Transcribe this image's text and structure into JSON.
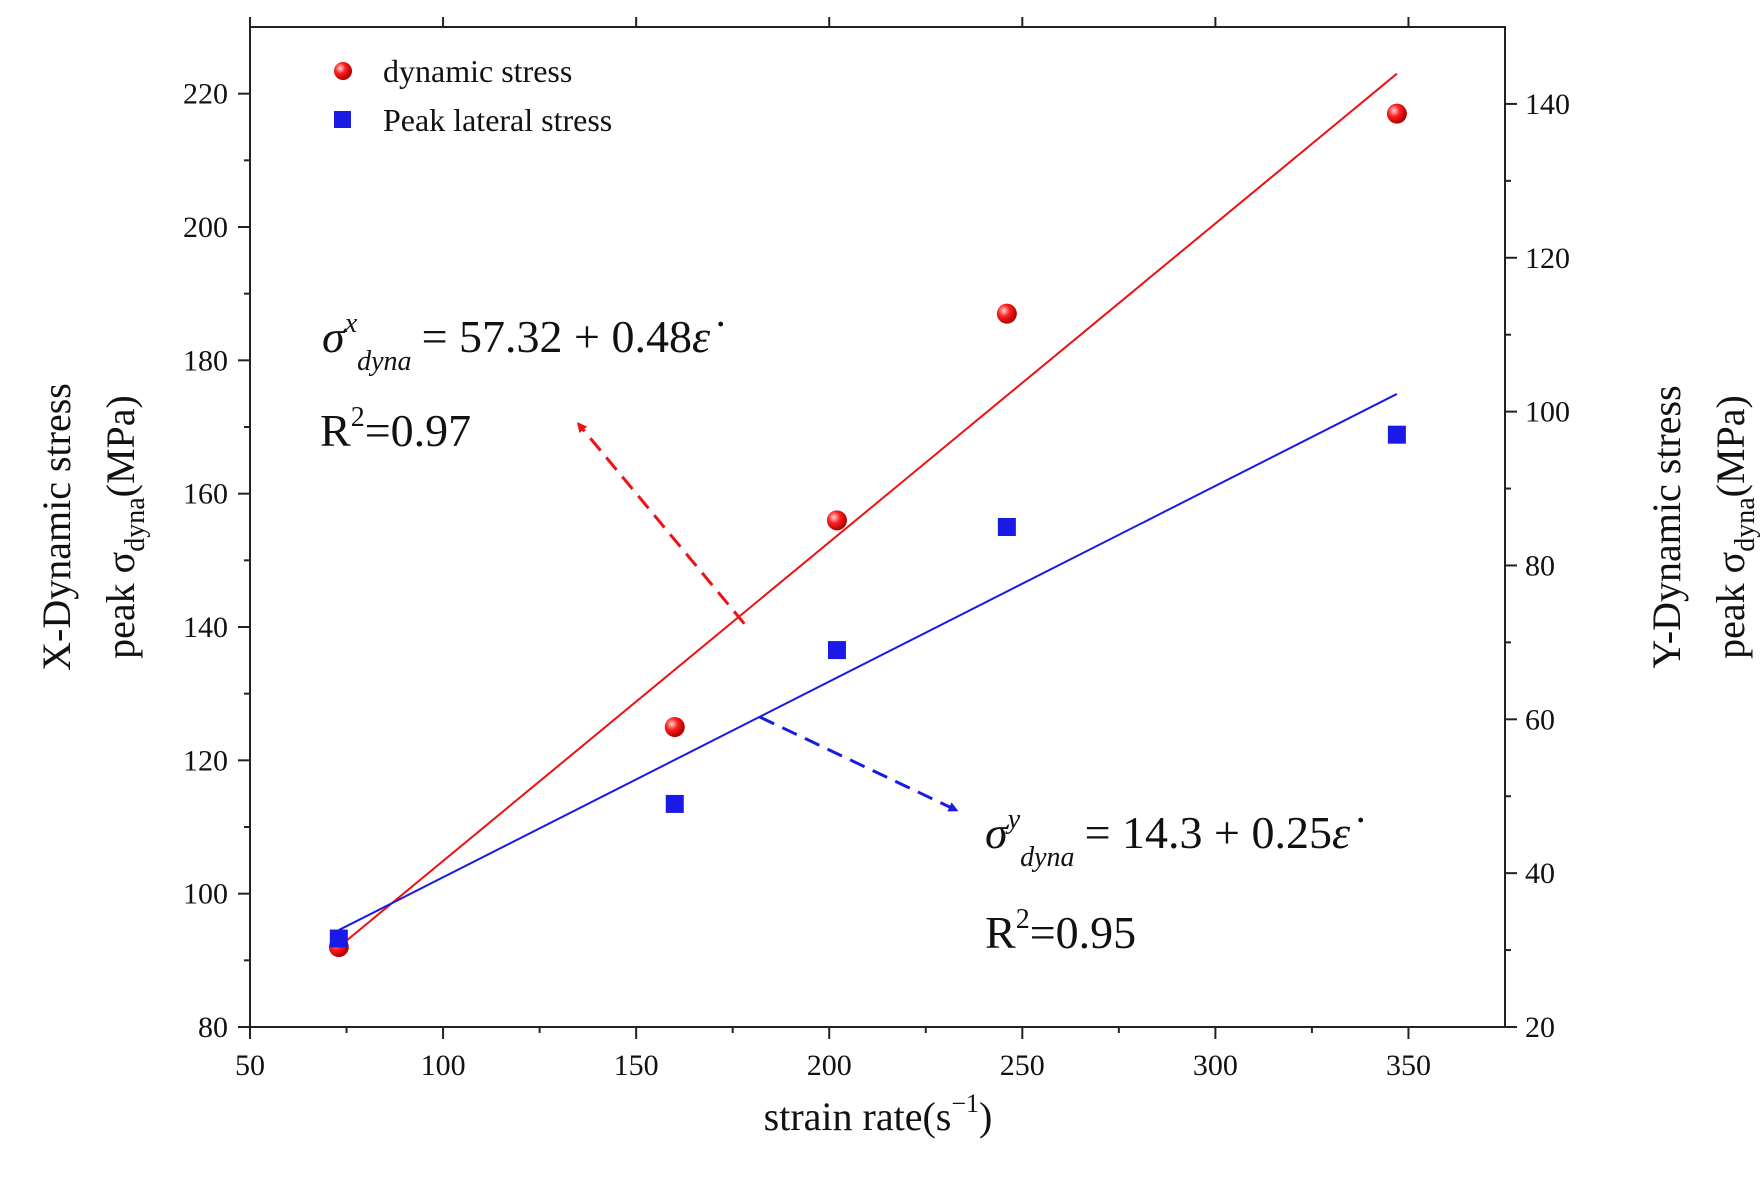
{
  "chart_data": {
    "type": "scatter",
    "xlabel_main": "strain rate(s",
    "xlabel_sup": "−1",
    "xlabel_close": ")",
    "ylabel_left": {
      "line1": "X-Dynamic stress",
      "line2_main": "peak σ",
      "line2_sub": "dyna",
      "line2_end": "(MPa)"
    },
    "ylabel_right": {
      "line1": "Y-Dynamic stress",
      "line2_main": "peak σ",
      "line2_sub": "dyna",
      "line2_end": "(MPa)"
    },
    "xlim": [
      50,
      375
    ],
    "ylim_left": [
      80,
      230
    ],
    "ylim_right": [
      20,
      150
    ],
    "xticks": [
      50,
      100,
      150,
      200,
      250,
      300,
      350
    ],
    "yticks_left": [
      80,
      100,
      120,
      140,
      160,
      180,
      200,
      220
    ],
    "yticks_right": [
      20,
      40,
      60,
      80,
      100,
      120,
      140
    ],
    "legend_position": "top-left",
    "series": [
      {
        "name": "dynamic stress",
        "axis": "left",
        "marker": "circle",
        "color": "#ee1111",
        "x": [
          73,
          160,
          202,
          246,
          347
        ],
        "y": [
          92,
          125,
          156,
          187,
          217
        ],
        "fit_line": {
          "x0": 73,
          "y0": 92,
          "x1": 347,
          "y1": 223
        }
      },
      {
        "name": "Peak lateral stress",
        "axis": "right",
        "marker": "square",
        "color": "#1a1ae6",
        "x": [
          73,
          160,
          202,
          246,
          347
        ],
        "y": [
          31.5,
          49,
          69,
          85,
          97
        ],
        "fit_line": {
          "x0": 73,
          "y0": 32.6,
          "x1": 347,
          "y1": 102.3
        }
      }
    ],
    "annotations": [
      {
        "id": "x",
        "sigma": "σ",
        "sup": "x",
        "sub": "dyna",
        "rhs": "= 57.32 + 0.48",
        "eps": "ε̇",
        "r2_prefix": "R",
        "r2_sup": "2",
        "r2_value": "=0.97",
        "arrow_color": "#ee1111",
        "arrow_from": {
          "x": 178,
          "y": 140.5
        },
        "arrow_to": {
          "x": 135,
          "y": 170.5
        }
      },
      {
        "id": "y",
        "sigma": "σ",
        "sup": "y",
        "sub": "dyna",
        "rhs": "= 14.3 + 0.25",
        "eps": "ε̇",
        "r2_prefix": "R",
        "r2_sup": "2",
        "r2_value": "=0.95",
        "arrow_color": "#1a1ae6",
        "arrow_from": {
          "x": 182,
          "y": 126.5
        },
        "arrow_to": {
          "x": 233,
          "y": 112.5
        }
      }
    ]
  }
}
